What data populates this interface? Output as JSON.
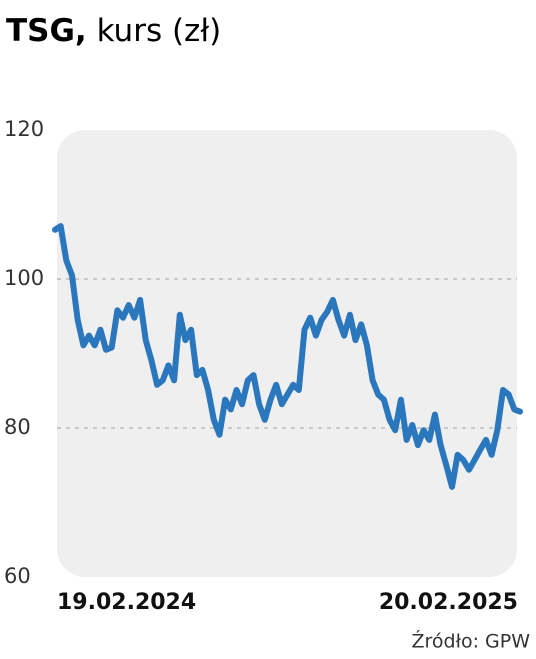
{
  "chart_data": {
    "type": "line",
    "title": "TSG,",
    "subtitle": "kurs (zł)",
    "source": "Źródło: GPW",
    "categories": [
      "19.02.2024",
      null,
      null,
      null,
      null,
      null,
      null,
      null,
      null,
      null,
      null,
      null,
      null,
      null,
      null,
      null,
      null,
      null,
      null,
      null,
      null,
      null,
      null,
      null,
      null,
      null,
      null,
      null,
      null,
      null,
      null,
      null,
      null,
      null,
      null,
      null,
      null,
      null,
      null,
      null,
      null,
      null,
      null,
      null,
      null,
      null,
      null,
      null,
      null,
      null,
      null,
      null,
      null,
      null,
      null,
      null,
      null,
      null,
      null,
      null,
      null,
      null,
      null,
      null,
      null,
      null,
      null,
      null,
      null,
      null,
      null,
      null,
      null,
      null,
      null,
      null,
      null,
      null,
      null,
      null,
      null,
      null,
      "20.02.2025"
    ],
    "series": [
      {
        "name": "TSG",
        "color": "#2a77bd",
        "values": [
          106.6,
          107.1,
          102.5,
          100.5,
          94.5,
          91.1,
          92.4,
          91.1,
          93.2,
          90.5,
          90.8,
          95.8,
          94.8,
          96.5,
          94.8,
          97.2,
          91.8,
          89.1,
          85.8,
          86.4,
          88.4,
          86.4,
          95.2,
          91.8,
          93.2,
          87.1,
          87.8,
          85.1,
          81.1,
          79.1,
          83.8,
          82.5,
          85.1,
          83.2,
          86.4,
          87.1,
          83.2,
          81.1,
          83.8,
          85.8,
          83.2,
          84.5,
          85.8,
          85.1,
          93.2,
          94.8,
          92.4,
          94.5,
          95.6,
          97.2,
          94.5,
          92.4,
          95.2,
          91.8,
          93.9,
          91.1,
          86.4,
          84.5,
          83.8,
          81.1,
          79.7,
          83.8,
          78.4,
          80.4,
          77.7,
          79.7,
          78.4,
          81.8,
          77.7,
          75,
          72.1,
          76.4,
          75.7,
          74.4,
          75.7,
          77.1,
          78.4,
          76.4,
          79.7,
          85.1,
          84.5,
          82.5,
          82.2
        ]
      }
    ],
    "ylim": [
      60,
      120
    ],
    "yticks": [
      60,
      80,
      100,
      120
    ],
    "grid": true
  }
}
